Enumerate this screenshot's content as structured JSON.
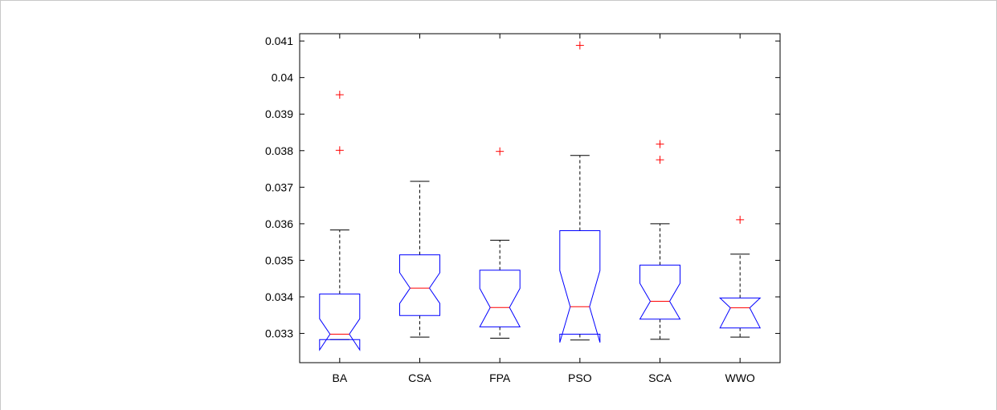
{
  "chart_data": {
    "type": "boxplot",
    "notched": true,
    "categories": [
      "BA",
      "CSA",
      "FPA",
      "PSO",
      "SCA",
      "WWO"
    ],
    "ylim": [
      0.0322,
      0.0412
    ],
    "yticks": [
      0.033,
      0.034,
      0.035,
      0.036,
      0.037,
      0.038,
      0.039,
      0.04,
      0.041
    ],
    "ytick_labels": [
      "0.033",
      "0.034",
      "0.035",
      "0.036",
      "0.037",
      "0.038",
      "0.039",
      "0.04",
      "0.041"
    ],
    "grid": false,
    "colors": {
      "box": "#0000ff",
      "median": "#ff0000",
      "whisker": "#000000",
      "outlier": "#ff0000",
      "axes": "#000000"
    },
    "boxes": [
      {
        "name": "BA",
        "whisker_low": 0.03283,
        "q1": 0.03283,
        "median": 0.03298,
        "q3": 0.03408,
        "whisker_high": 0.03583,
        "notch_low": 0.03255,
        "notch_high": 0.0334,
        "outliers": [
          0.03801,
          0.03953
        ]
      },
      {
        "name": "CSA",
        "whisker_low": 0.0329,
        "q1": 0.03349,
        "median": 0.03424,
        "q3": 0.03515,
        "whisker_high": 0.03716,
        "notch_low": 0.03382,
        "notch_high": 0.03466,
        "outliers": []
      },
      {
        "name": "FPA",
        "whisker_low": 0.03287,
        "q1": 0.03318,
        "median": 0.03371,
        "q3": 0.03473,
        "whisker_high": 0.03555,
        "notch_low": 0.03318,
        "notch_high": 0.03423,
        "outliers": [
          0.03798
        ]
      },
      {
        "name": "PSO",
        "whisker_low": 0.03282,
        "q1": 0.03298,
        "median": 0.03373,
        "q3": 0.03581,
        "whisker_high": 0.03787,
        "notch_low": 0.03275,
        "notch_high": 0.03472,
        "outliers": [
          0.04088
        ]
      },
      {
        "name": "SCA",
        "whisker_low": 0.03284,
        "q1": 0.03339,
        "median": 0.03388,
        "q3": 0.03487,
        "whisker_high": 0.036,
        "notch_low": 0.03339,
        "notch_high": 0.03437,
        "outliers": [
          0.03775,
          0.03818
        ]
      },
      {
        "name": "WWO",
        "whisker_low": 0.0329,
        "q1": 0.03315,
        "median": 0.0337,
        "q3": 0.03397,
        "whisker_high": 0.03517,
        "notch_low": 0.03315,
        "notch_high": 0.03397,
        "outliers": [
          0.03611
        ]
      }
    ]
  }
}
